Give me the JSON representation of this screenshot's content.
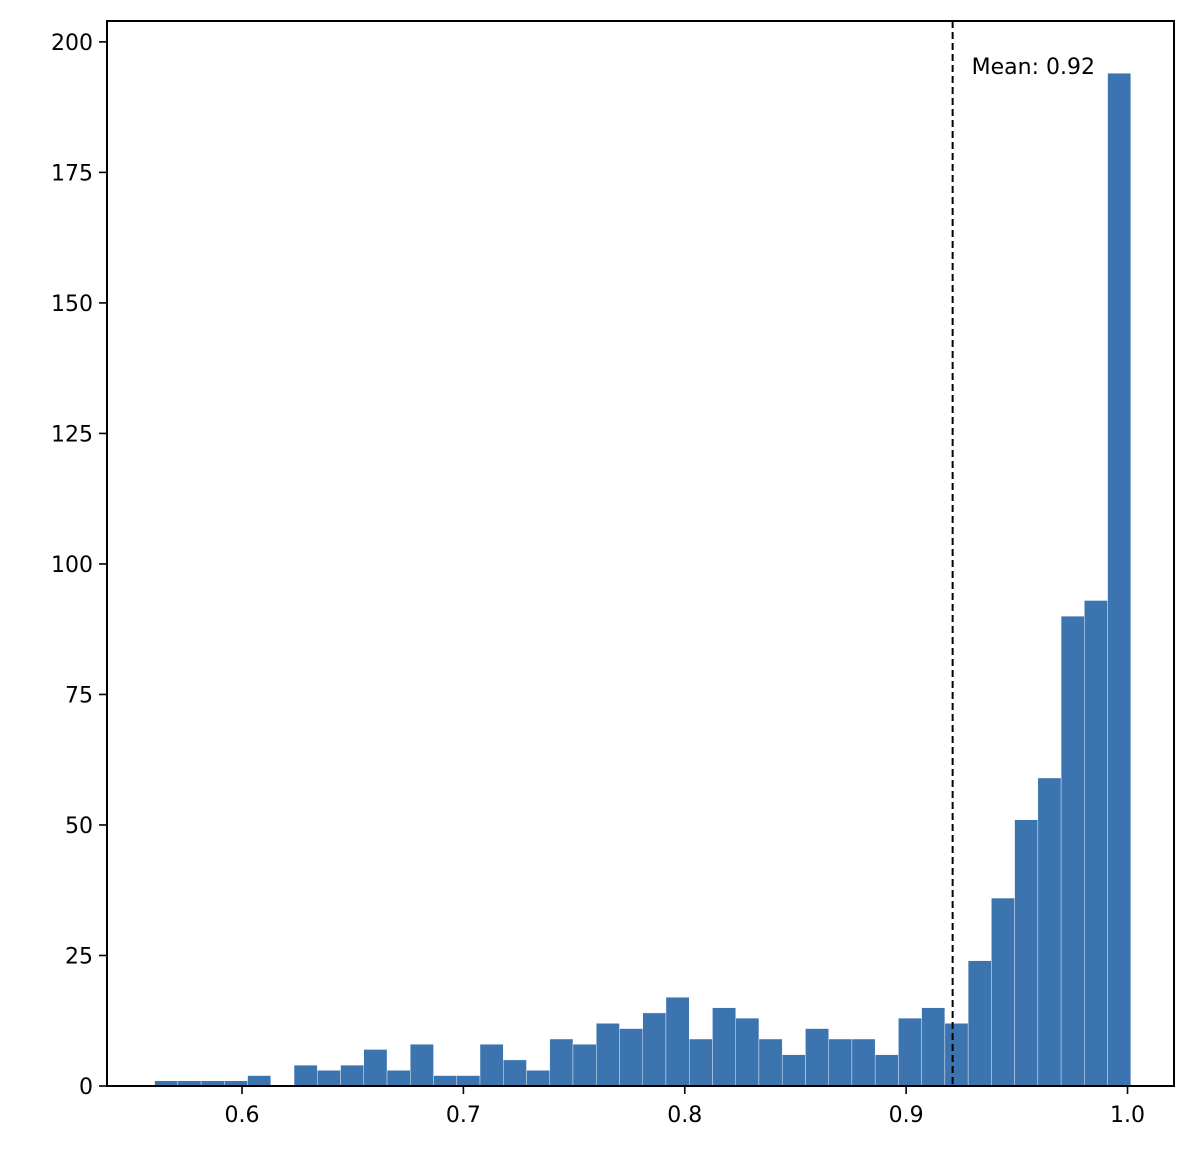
{
  "chart_data": {
    "type": "bar",
    "title": "",
    "xlabel": "",
    "ylabel": "",
    "xlim": [
      0.539,
      1.021
    ],
    "ylim": [
      0,
      204
    ],
    "x_ticks": [
      0.6,
      0.7,
      0.8,
      0.9,
      1.0
    ],
    "x_tick_labels": [
      "0.6",
      "0.7",
      "0.8",
      "0.9",
      "1.0"
    ],
    "y_ticks": [
      0,
      25,
      50,
      75,
      100,
      125,
      150,
      175,
      200
    ],
    "y_tick_labels": [
      "0",
      "25",
      "50",
      "75",
      "100",
      "125",
      "150",
      "175",
      "200"
    ],
    "bin_edges": [
      0.5605,
      0.571,
      0.5815,
      0.592,
      0.6025,
      0.613,
      0.6235,
      0.634,
      0.6445,
      0.655,
      0.6655,
      0.676,
      0.6865,
      0.697,
      0.7075,
      0.718,
      0.7285,
      0.739,
      0.7495,
      0.76,
      0.7705,
      0.781,
      0.7915,
      0.802,
      0.8125,
      0.823,
      0.8335,
      0.844,
      0.8545,
      0.865,
      0.8755,
      0.886,
      0.8965,
      0.907,
      0.9175,
      0.928,
      0.9385,
      0.949,
      0.9595,
      0.97,
      0.9805,
      0.991,
      1.0015
    ],
    "values": [
      1,
      1,
      1,
      1,
      2,
      0,
      4,
      3,
      4,
      7,
      3,
      8,
      2,
      2,
      8,
      5,
      3,
      9,
      8,
      12,
      11,
      14,
      17,
      9,
      15,
      13,
      9,
      6,
      11,
      9,
      9,
      6,
      13,
      15,
      12,
      24,
      36,
      51,
      59,
      90,
      93,
      194
    ],
    "bar_color": "#3c74b0",
    "grid": false,
    "reference_line": {
      "x": 0.921,
      "style": "dashed",
      "color": "#000000"
    },
    "annotation": {
      "text": "Mean: 0.92",
      "x": 0.921,
      "y": 194
    }
  }
}
